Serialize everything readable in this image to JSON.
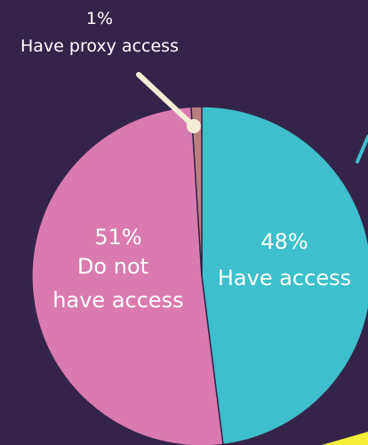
{
  "chart_data": {
    "type": "pie",
    "start_angle_deg": 0,
    "direction": "clockwise",
    "slices": [
      {
        "percent_label": "48%",
        "text": "Have access",
        "value": 48,
        "color": "#3dbfcc"
      },
      {
        "percent_label": "51%",
        "text": "Do not have access",
        "lines": [
          "Do not",
          "have access"
        ],
        "value": 51,
        "color": "#d97bb0"
      },
      {
        "percent_label": "1%",
        "text": "Have proxy access",
        "value": 1,
        "color": "#b97f7f"
      }
    ],
    "annotation_line_color": "#f3edd8",
    "stroke_color": "#35244a"
  }
}
